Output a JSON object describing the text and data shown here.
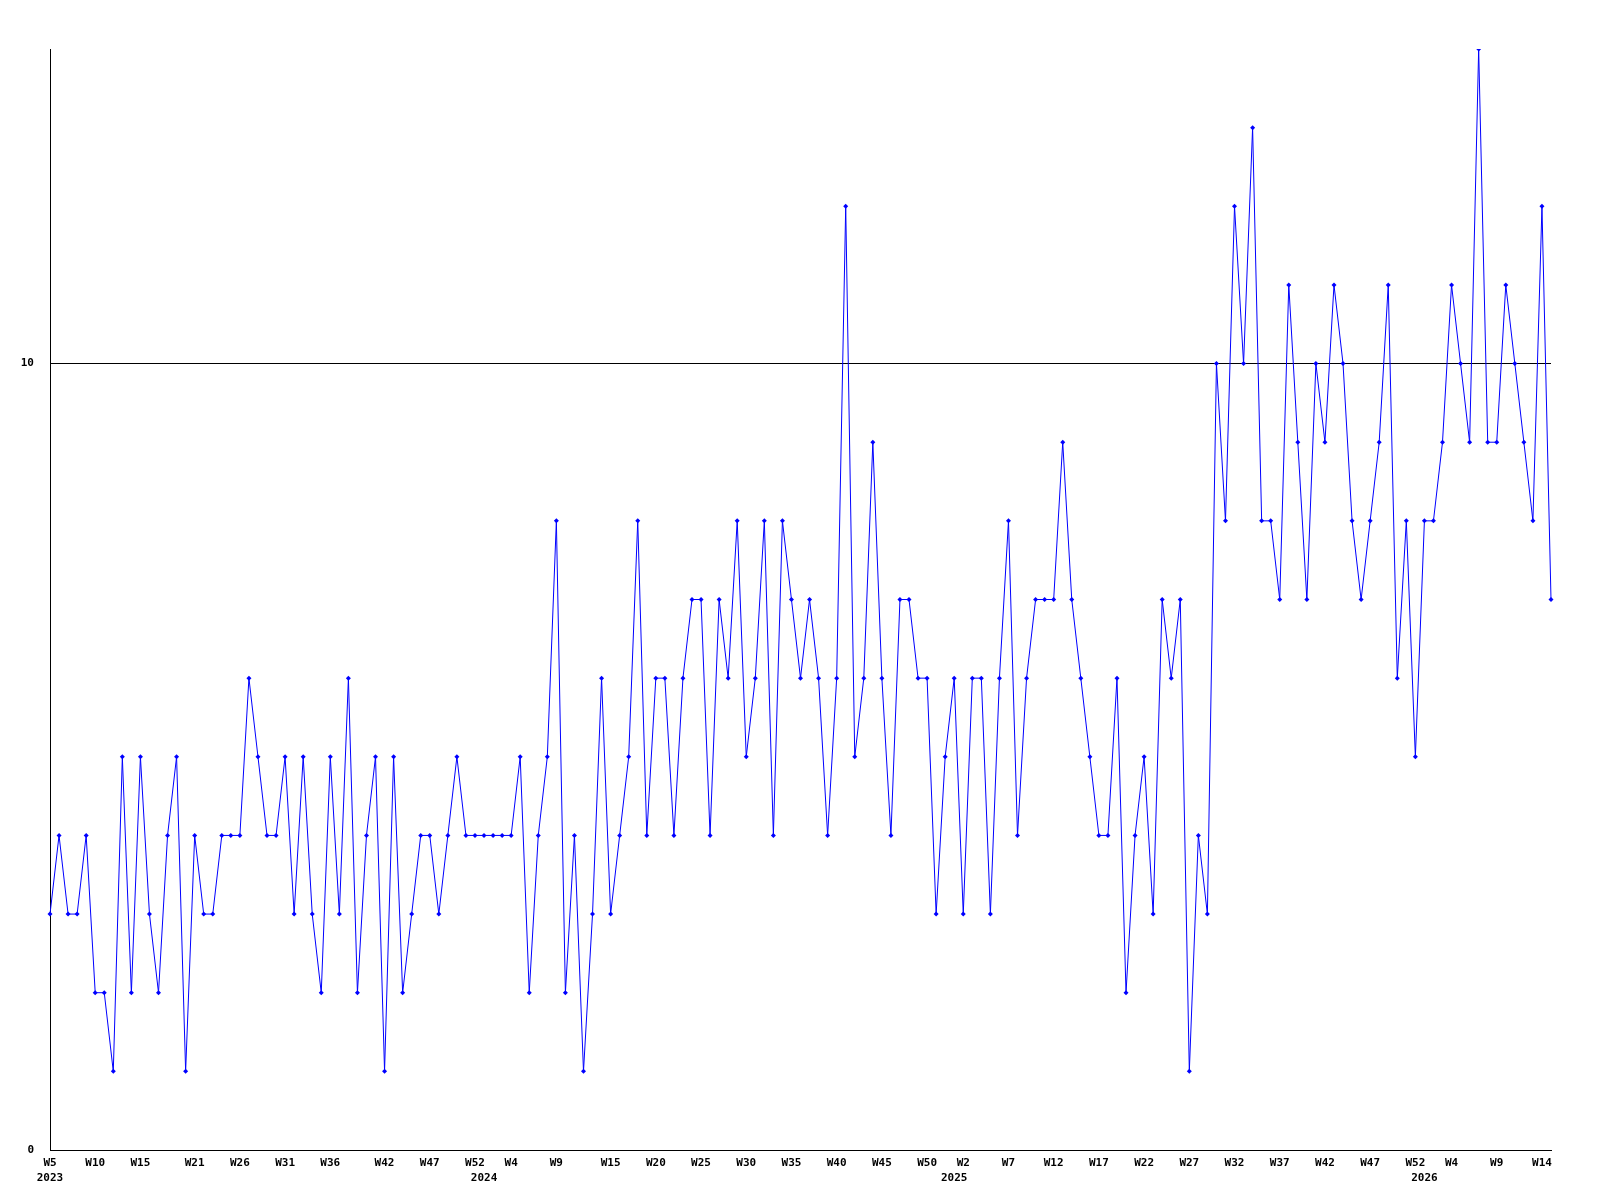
{
  "chart_data": {
    "type": "line",
    "categories": [
      "W5\n2023",
      null,
      null,
      null,
      null,
      "W10",
      null,
      null,
      null,
      null,
      "W15",
      null,
      null,
      null,
      null,
      null,
      "W21",
      null,
      null,
      null,
      null,
      "W26",
      null,
      null,
      null,
      null,
      "W31",
      null,
      null,
      null,
      null,
      "W36",
      null,
      null,
      null,
      null,
      null,
      "W42",
      null,
      null,
      null,
      null,
      "W47",
      null,
      null,
      null,
      null,
      "W52",
      "\n2024",
      null,
      null,
      "W4",
      null,
      null,
      null,
      null,
      "W9",
      null,
      null,
      null,
      null,
      null,
      "W15",
      null,
      null,
      null,
      null,
      "W20",
      null,
      null,
      null,
      null,
      "W25",
      null,
      null,
      null,
      null,
      "W30",
      null,
      null,
      null,
      null,
      "W35",
      null,
      null,
      null,
      null,
      "W40",
      null,
      null,
      null,
      null,
      "W45",
      null,
      null,
      null,
      null,
      "W50",
      null,
      null,
      "\n2025",
      "W2",
      null,
      null,
      null,
      null,
      "W7",
      null,
      null,
      null,
      null,
      "W12",
      null,
      null,
      null,
      null,
      "W17",
      null,
      null,
      null,
      null,
      "W22",
      null,
      null,
      null,
      null,
      "W27",
      null,
      null,
      null,
      null,
      "W32",
      null,
      null,
      null,
      null,
      "W37",
      null,
      null,
      null,
      null,
      "W42",
      null,
      null,
      null,
      null,
      "W47",
      null,
      null,
      null,
      null,
      "W52",
      "\n2026",
      null,
      null,
      "W4",
      null,
      null,
      null,
      null,
      "W9",
      null,
      null,
      null,
      null,
      "W14",
      null
    ],
    "series": [
      {
        "color": "#0000ff",
        "values": [
          3,
          4,
          3,
          3,
          4,
          2,
          2,
          1,
          5,
          2,
          5,
          3,
          2,
          4,
          5,
          1,
          4,
          3,
          3,
          4,
          4,
          4,
          6,
          5,
          4,
          4,
          5,
          3,
          5,
          3,
          2,
          5,
          3,
          6,
          2,
          4,
          5,
          1,
          5,
          2,
          3,
          4,
          4,
          3,
          4,
          5,
          4,
          4,
          4,
          4,
          4,
          4,
          5,
          2,
          4,
          5,
          8,
          2,
          4,
          1,
          3,
          6,
          3,
          4,
          5,
          8,
          4,
          6,
          6,
          4,
          6,
          7,
          7,
          4,
          7,
          6,
          8,
          5,
          6,
          8,
          4,
          8,
          7,
          6,
          7,
          6,
          4,
          6,
          12,
          5,
          6,
          9,
          6,
          4,
          7,
          7,
          6,
          6,
          3,
          5,
          6,
          3,
          6,
          6,
          3,
          6,
          8,
          4,
          6,
          7,
          7,
          7,
          9,
          7,
          6,
          5,
          4,
          4,
          6,
          2,
          4,
          5,
          3,
          7,
          6,
          7,
          1,
          4,
          3,
          10,
          8,
          12,
          10,
          13,
          8,
          8,
          7,
          11,
          9,
          7,
          10,
          9,
          11,
          10,
          8,
          7,
          8,
          9,
          11,
          6,
          8,
          5,
          8,
          8,
          9,
          11,
          10,
          9,
          14,
          9,
          9,
          11,
          10,
          9,
          8,
          12,
          7
        ]
      }
    ],
    "ylim": [
      0,
      14
    ],
    "yticks": [
      0,
      10
    ],
    "grid": "y",
    "legend": false,
    "marker": "diamond",
    "line_style": "solid"
  }
}
